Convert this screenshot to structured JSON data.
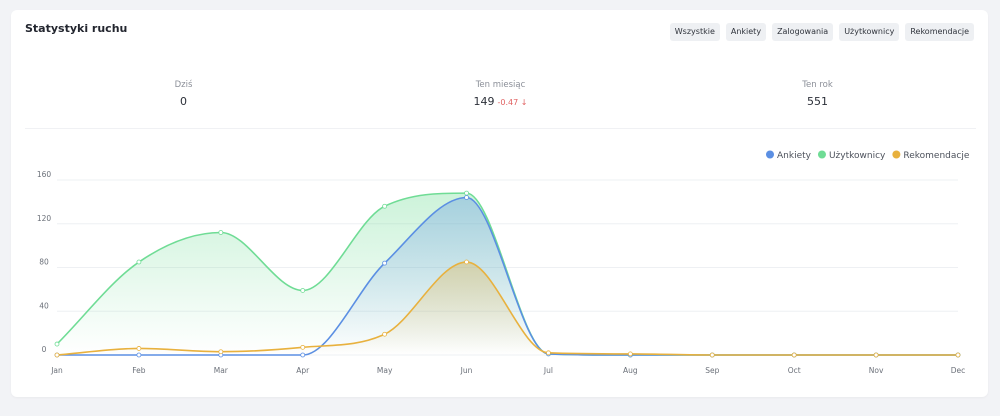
{
  "card": {
    "title": "Statystyki ruchu"
  },
  "filters": [
    "Wszystkie",
    "Ankiety",
    "Zalogowania",
    "Użytkownicy",
    "Rekomendacje"
  ],
  "stats": [
    {
      "label": "Dziś",
      "value": "0",
      "delta": ""
    },
    {
      "label": "Ten miesiąc",
      "value": "149",
      "delta": "-0.47 ↓"
    },
    {
      "label": "Ten rok",
      "value": "551",
      "delta": ""
    }
  ],
  "chart_data": {
    "type": "area",
    "categories": [
      "Jan",
      "Feb",
      "Mar",
      "Apr",
      "May",
      "Jun",
      "Jul",
      "Aug",
      "Sep",
      "Oct",
      "Nov",
      "Dec"
    ],
    "series": [
      {
        "name": "Użytkownicy",
        "color": "#6fdc95",
        "values": [
          10,
          85,
          112,
          59,
          136,
          148,
          1,
          0,
          0,
          0,
          0,
          0
        ]
      },
      {
        "name": "Ankiety",
        "color": "#5b8fe3",
        "values": [
          0,
          0,
          0,
          0,
          84,
          144,
          1,
          0,
          0,
          0,
          0,
          0
        ]
      },
      {
        "name": "Rekomendacje",
        "color": "#e8b13e",
        "values": [
          0,
          6,
          3,
          7,
          19,
          85,
          2,
          1,
          0,
          0,
          0,
          0
        ]
      }
    ],
    "legend_order": [
      "Ankiety",
      "Użytkownicy",
      "Rekomendacje"
    ],
    "ylim": [
      0,
      160
    ],
    "yticks": [
      0,
      40,
      80,
      120,
      160
    ],
    "grid": true,
    "legend_position": "top-right",
    "title": "",
    "xlabel": "",
    "ylabel": ""
  }
}
